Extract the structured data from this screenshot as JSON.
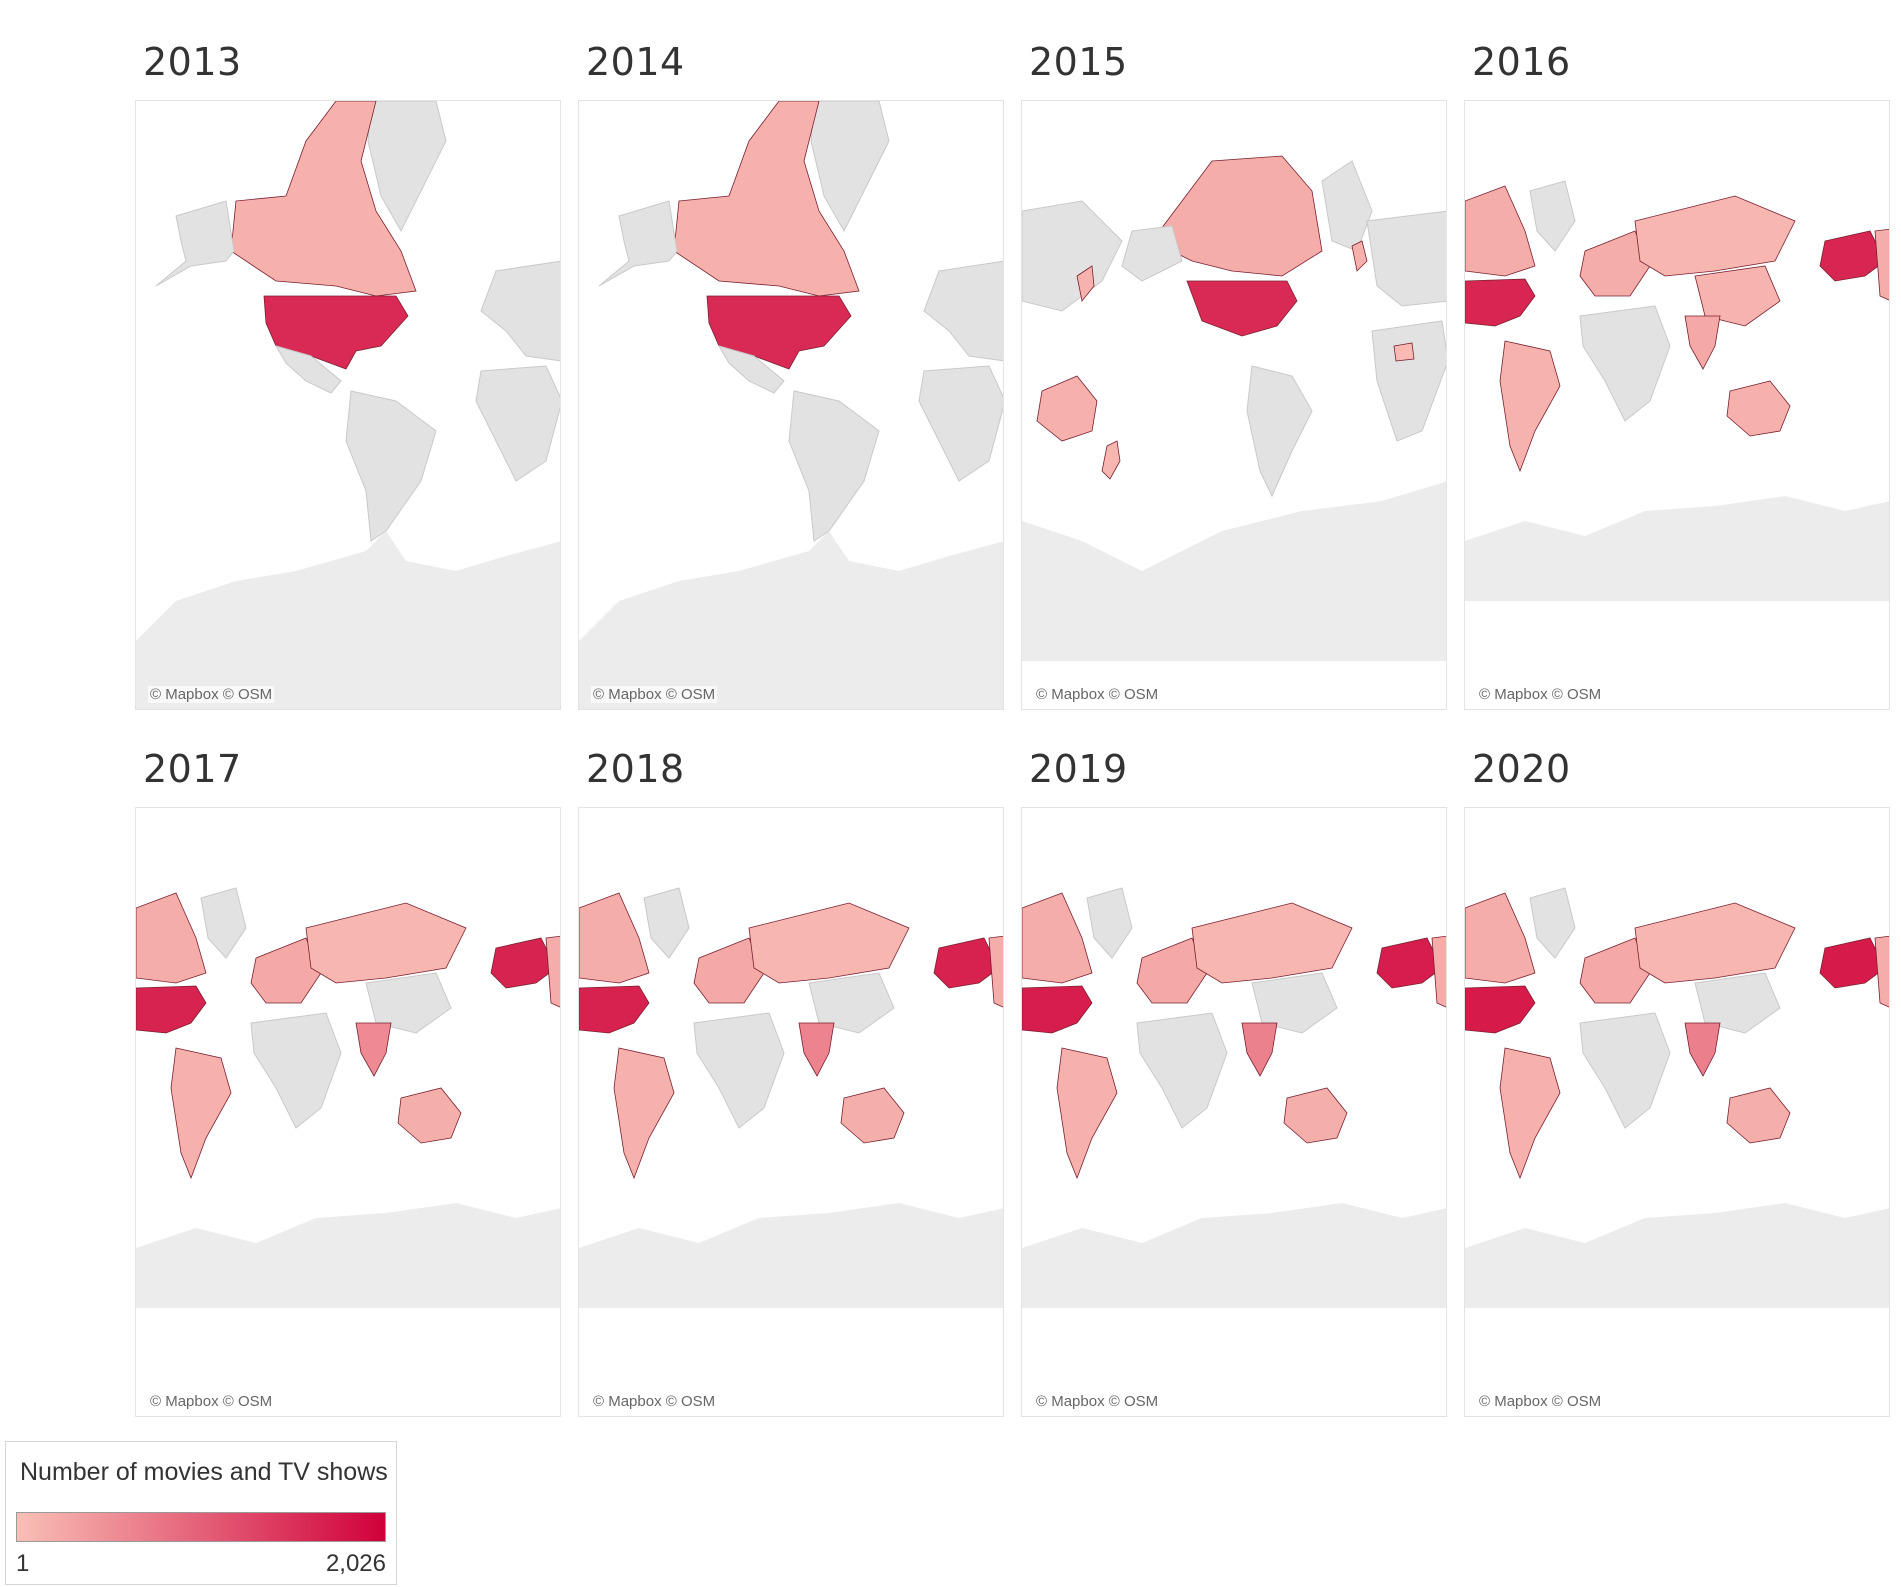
{
  "colors": {
    "land_no_data": "#e2e2e2",
    "land_border": "#c9c9c9",
    "antarctica": "#ececec",
    "scale_low": "#f9c0b6",
    "scale_high": "#d0003a",
    "country_border": "#7a2030"
  },
  "attribution": "© Mapbox © OSM",
  "panels": [
    {
      "year": "2013",
      "view": "north-america",
      "countries": {
        "united_states": 0.78,
        "canada": 0.08
      }
    },
    {
      "year": "2014",
      "view": "north-america",
      "countries": {
        "united_states": 0.78,
        "canada": 0.08
      }
    },
    {
      "year": "2015",
      "view": "pacific",
      "countries": {
        "united_states": 0.78,
        "canada": 0.1,
        "australia": 0.08,
        "japan": 0.07,
        "new_zealand": 0.05,
        "united_kingdom": 0.08,
        "nigeria": 0.03
      }
    },
    {
      "year": "2016",
      "view": "world",
      "countries": {
        "united_states": 0.8,
        "canada": 0.1,
        "russia": 0.05,
        "south_america": 0.07,
        "china": 0.06,
        "india": 0.12,
        "australia": 0.08,
        "europe": 0.1
      }
    },
    {
      "year": "2017",
      "view": "world",
      "countries": {
        "united_states": 0.82,
        "canada": 0.1,
        "russia": 0.05,
        "south_america": 0.08,
        "india": 0.28,
        "australia": 0.09,
        "europe": 0.12
      }
    },
    {
      "year": "2018",
      "view": "world",
      "countries": {
        "united_states": 0.83,
        "canada": 0.1,
        "russia": 0.05,
        "south_america": 0.08,
        "india": 0.32,
        "australia": 0.09,
        "europe": 0.12
      }
    },
    {
      "year": "2019",
      "view": "world",
      "countries": {
        "united_states": 0.85,
        "canada": 0.1,
        "russia": 0.05,
        "south_america": 0.08,
        "india": 0.33,
        "australia": 0.09,
        "europe": 0.12
      }
    },
    {
      "year": "2020",
      "view": "world",
      "countries": {
        "united_states": 0.86,
        "canada": 0.1,
        "russia": 0.05,
        "south_america": 0.08,
        "india": 0.34,
        "australia": 0.09,
        "europe": 0.12
      }
    }
  ],
  "legend": {
    "title": "Number of movies and TV shows",
    "min_label": "1",
    "max_label": "2,026",
    "min_value": 1,
    "max_value": 2026
  }
}
